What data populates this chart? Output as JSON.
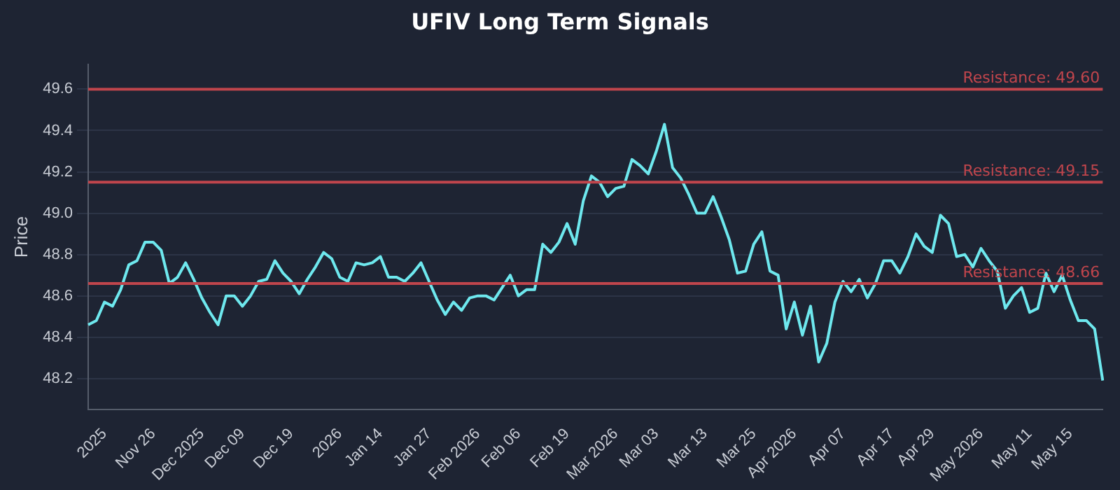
{
  "chart_data": {
    "type": "line",
    "title": "UFIV Long Term Signals",
    "ylabel": "Price",
    "categories": [
      null,
      null,
      "2025",
      null,
      null,
      null,
      null,
      null,
      "Nov 26",
      null,
      null,
      null,
      null,
      null,
      "Dec 2025",
      null,
      null,
      null,
      null,
      "Dec 09",
      null,
      null,
      null,
      null,
      null,
      "Dec 19",
      null,
      null,
      null,
      null,
      null,
      "2026",
      null,
      null,
      null,
      null,
      "Jan 14",
      null,
      null,
      null,
      null,
      null,
      "Jan 27",
      null,
      null,
      null,
      null,
      null,
      "Feb 2026",
      null,
      null,
      null,
      null,
      "Feb 06",
      null,
      null,
      null,
      null,
      null,
      "Feb 19",
      null,
      null,
      null,
      null,
      null,
      "Mar 2026",
      null,
      null,
      null,
      null,
      "Mar 03",
      null,
      null,
      null,
      null,
      null,
      "Mar 13",
      null,
      null,
      null,
      null,
      null,
      "Mar 25",
      null,
      null,
      null,
      null,
      "Apr 2026",
      null,
      null,
      null,
      null,
      null,
      "Apr 07",
      null,
      null,
      null,
      null,
      null,
      "Apr 17",
      null,
      null,
      null,
      null,
      "Apr 29",
      null,
      null,
      null,
      null,
      null,
      "May 2026",
      null,
      null,
      null,
      null,
      null,
      "May 11",
      null,
      null,
      null,
      null,
      "May 15",
      null,
      null,
      null,
      null
    ],
    "series": [
      {
        "color": "#6ee8ee",
        "values": [
          48.46,
          48.48,
          48.57,
          48.55,
          48.63,
          48.75,
          48.77,
          48.86,
          48.86,
          48.82,
          48.66,
          48.69,
          48.76,
          48.68,
          48.59,
          48.52,
          48.46,
          48.6,
          48.6,
          48.55,
          48.6,
          48.67,
          48.68,
          48.77,
          48.71,
          48.67,
          48.61,
          48.68,
          48.74,
          48.81,
          48.78,
          48.69,
          48.67,
          48.76,
          48.75,
          48.76,
          48.79,
          48.69,
          48.69,
          48.67,
          48.71,
          48.76,
          48.67,
          48.58,
          48.51,
          48.57,
          48.53,
          48.59,
          48.6,
          48.6,
          48.58,
          48.64,
          48.7,
          48.6,
          48.63,
          48.63,
          48.85,
          48.81,
          48.86,
          48.95,
          48.85,
          49.06,
          49.18,
          49.15,
          49.08,
          49.12,
          49.13,
          49.26,
          49.23,
          49.19,
          49.3,
          49.43,
          49.22,
          49.17,
          49.09,
          49.0,
          49.0,
          49.08,
          48.98,
          48.87,
          48.71,
          48.72,
          48.85,
          48.91,
          48.72,
          48.7,
          48.44,
          48.57,
          48.41,
          48.55,
          48.28,
          48.37,
          48.57,
          48.67,
          48.62,
          48.68,
          48.59,
          48.66,
          48.77,
          48.77,
          48.71,
          48.79,
          48.9,
          48.84,
          48.81,
          48.99,
          48.95,
          48.79,
          48.8,
          48.74,
          48.83,
          48.77,
          48.72,
          48.54,
          48.6,
          48.64,
          48.52,
          48.54,
          48.71,
          48.62,
          48.7,
          48.58,
          48.48,
          48.48,
          48.44,
          48.19
        ]
      }
    ],
    "ylim": [
      48.05,
      49.72
    ],
    "yticks": [
      48.2,
      48.4,
      48.6,
      48.8,
      {
        "value": 49,
        "label": "49.0"
      },
      49.2,
      49.4,
      49.6
    ],
    "ref_lines": [
      {
        "axis": "y",
        "value": 49.6,
        "label": "Resistance: 49.60",
        "color": "#c0454c"
      },
      {
        "axis": "y",
        "value": 49.15,
        "label": "Resistance: 49.15",
        "color": "#c0454c"
      },
      {
        "axis": "y",
        "value": 48.66,
        "label": "Resistance: 48.66",
        "color": "#c0454c"
      }
    ],
    "grid": "y",
    "legend": false,
    "marker": "none",
    "line_style": "solid"
  }
}
